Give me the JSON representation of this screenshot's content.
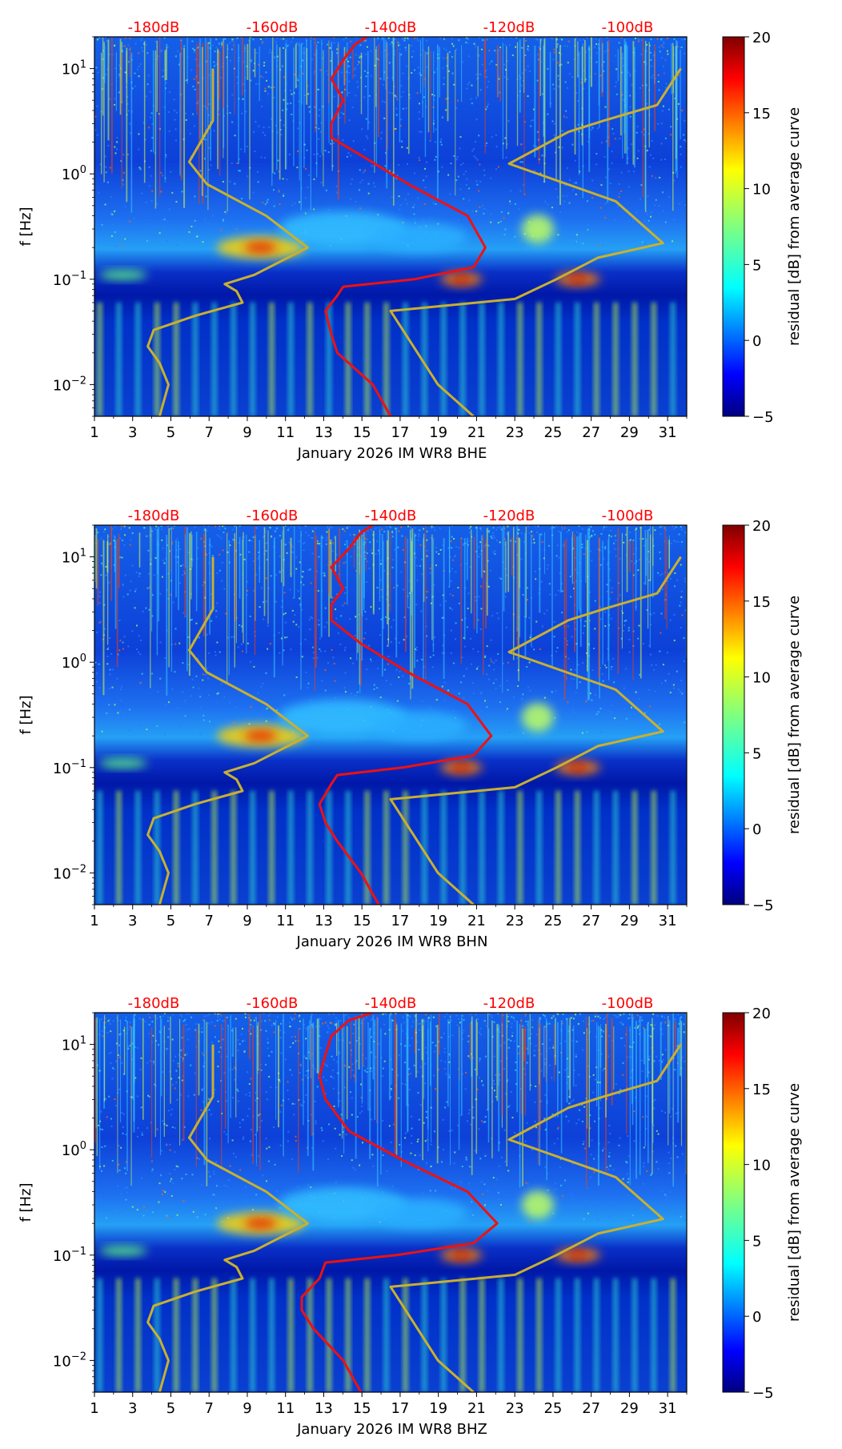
{
  "colors": {
    "db_axis": "#ff0000",
    "nlnm_nhnm": "#c8b030",
    "median": "#ee1111"
  },
  "colorbar": {
    "label": "residual [dB] from average curve",
    "ticks": [
      "20",
      "15",
      "10",
      "5",
      "0",
      "−5"
    ],
    "range": [
      -5,
      20
    ]
  },
  "chart_data": [
    {
      "type": "heatmap",
      "title": "",
      "xlabel": "January 2026 IM WR8  BHE",
      "ylabel": "f [Hz]",
      "x_ticks": [
        "1",
        "3",
        "5",
        "7",
        "9",
        "11",
        "13",
        "15",
        "17",
        "19",
        "21",
        "23",
        "25",
        "27",
        "29",
        "31"
      ],
      "xlim": [
        1,
        32
      ],
      "y_ticks": [
        {
          "base": "10",
          "exp": "1",
          "value": 10
        },
        {
          "base": "10",
          "exp": "0",
          "value": 1
        },
        {
          "base": "10",
          "exp": "−1",
          "value": 0.1
        },
        {
          "base": "10",
          "exp": "−2",
          "value": 0.01
        }
      ],
      "ylim": [
        0.005,
        20
      ],
      "top_axis_labels": [
        "-180dB",
        "-160dB",
        "-140dB",
        "-120dB",
        "-100dB"
      ],
      "top_axis_values": [
        -180,
        -160,
        -140,
        -120,
        -100
      ],
      "top_axis_range": [
        -190,
        -90
      ],
      "series": [
        {
          "name": "NLNM",
          "points": [
            [
              -179,
              0.005
            ],
            [
              -177.5,
              0.01
            ],
            [
              -179,
              0.016
            ],
            [
              -181,
              0.023
            ],
            [
              -180,
              0.033
            ],
            [
              -173,
              0.045
            ],
            [
              -165,
              0.06
            ],
            [
              -166,
              0.077
            ],
            [
              -168,
              0.09
            ],
            [
              -163,
              0.11
            ],
            [
              -154,
              0.2
            ],
            [
              -161,
              0.4
            ],
            [
              -171,
              0.8
            ],
            [
              -174,
              1.3
            ],
            [
              -170,
              3.2
            ],
            [
              -170,
              10
            ]
          ]
        },
        {
          "name": "NHNM",
          "points": [
            [
              -126,
              0.005
            ],
            [
              -132,
              0.01
            ],
            [
              -140,
              0.05
            ],
            [
              -119,
              0.065
            ],
            [
              -112,
              0.1
            ],
            [
              -105,
              0.16
            ],
            [
              -94,
              0.22
            ],
            [
              -102,
              0.55
            ],
            [
              -120,
              1.25
            ],
            [
              -110,
              2.5
            ],
            [
              -104,
              3.2
            ],
            [
              -95,
              4.5
            ],
            [
              -91,
              10
            ]
          ]
        },
        {
          "name": "median",
          "points": [
            [
              -140,
              0.005
            ],
            [
              -143,
              0.01
            ],
            [
              -149,
              0.02
            ],
            [
              -150,
              0.03
            ],
            [
              -151,
              0.05
            ],
            [
              -149,
              0.07
            ],
            [
              -148,
              0.085
            ],
            [
              -136,
              0.1
            ],
            [
              -126,
              0.13
            ],
            [
              -124,
              0.2
            ],
            [
              -127,
              0.4
            ],
            [
              -137,
              0.8
            ],
            [
              -145,
              1.5
            ],
            [
              -150,
              2.2
            ],
            [
              -150,
              3.0
            ],
            [
              -148,
              5
            ],
            [
              -150,
              8
            ],
            [
              -148,
              12
            ],
            [
              -146,
              17
            ],
            [
              -144,
              20
            ]
          ]
        }
      ]
    },
    {
      "type": "heatmap",
      "title": "",
      "xlabel": "January 2026 IM WR8  BHN",
      "ylabel": "f [Hz]",
      "x_ticks": [
        "1",
        "3",
        "5",
        "7",
        "9",
        "11",
        "13",
        "15",
        "17",
        "19",
        "21",
        "23",
        "25",
        "27",
        "29",
        "31"
      ],
      "xlim": [
        1,
        32
      ],
      "y_ticks": [
        {
          "base": "10",
          "exp": "1",
          "value": 10
        },
        {
          "base": "10",
          "exp": "0",
          "value": 1
        },
        {
          "base": "10",
          "exp": "−1",
          "value": 0.1
        },
        {
          "base": "10",
          "exp": "−2",
          "value": 0.01
        }
      ],
      "ylim": [
        0.005,
        20
      ],
      "top_axis_labels": [
        "-180dB",
        "-160dB",
        "-140dB",
        "-120dB",
        "-100dB"
      ],
      "top_axis_values": [
        -180,
        -160,
        -140,
        -120,
        -100
      ],
      "top_axis_range": [
        -190,
        -90
      ],
      "series": [
        {
          "name": "NLNM",
          "points": [
            [
              -179,
              0.005
            ],
            [
              -177.5,
              0.01
            ],
            [
              -179,
              0.016
            ],
            [
              -181,
              0.023
            ],
            [
              -180,
              0.033
            ],
            [
              -173,
              0.045
            ],
            [
              -165,
              0.06
            ],
            [
              -166,
              0.077
            ],
            [
              -168,
              0.09
            ],
            [
              -163,
              0.11
            ],
            [
              -154,
              0.2
            ],
            [
              -161,
              0.4
            ],
            [
              -171,
              0.8
            ],
            [
              -174,
              1.3
            ],
            [
              -170,
              3.2
            ],
            [
              -170,
              10
            ]
          ]
        },
        {
          "name": "NHNM",
          "points": [
            [
              -126,
              0.005
            ],
            [
              -132,
              0.01
            ],
            [
              -140,
              0.05
            ],
            [
              -119,
              0.065
            ],
            [
              -112,
              0.1
            ],
            [
              -105,
              0.16
            ],
            [
              -94,
              0.22
            ],
            [
              -102,
              0.55
            ],
            [
              -120,
              1.25
            ],
            [
              -110,
              2.5
            ],
            [
              -104,
              3.2
            ],
            [
              -95,
              4.5
            ],
            [
              -91,
              10
            ]
          ]
        },
        {
          "name": "median",
          "points": [
            [
              -142,
              0.005
            ],
            [
              -145,
              0.01
            ],
            [
              -149,
              0.02
            ],
            [
              -151,
              0.03
            ],
            [
              -152,
              0.045
            ],
            [
              -150,
              0.07
            ],
            [
              -149,
              0.085
            ],
            [
              -138,
              0.1
            ],
            [
              -126,
              0.13
            ],
            [
              -123,
              0.2
            ],
            [
              -127,
              0.4
            ],
            [
              -137,
              0.8
            ],
            [
              -145,
              1.5
            ],
            [
              -150,
              2.5
            ],
            [
              -150,
              3.5
            ],
            [
              -148,
              5
            ],
            [
              -150,
              8
            ],
            [
              -147,
              12
            ],
            [
              -145,
              17
            ],
            [
              -143,
              20
            ]
          ]
        }
      ]
    },
    {
      "type": "heatmap",
      "title": "",
      "xlabel": "January 2026 IM WR8  BHZ",
      "ylabel": "f [Hz]",
      "x_ticks": [
        "1",
        "3",
        "5",
        "7",
        "9",
        "11",
        "13",
        "15",
        "17",
        "19",
        "21",
        "23",
        "25",
        "27",
        "29",
        "31"
      ],
      "xlim": [
        1,
        32
      ],
      "y_ticks": [
        {
          "base": "10",
          "exp": "1",
          "value": 10
        },
        {
          "base": "10",
          "exp": "0",
          "value": 1
        },
        {
          "base": "10",
          "exp": "−1",
          "value": 0.1
        },
        {
          "base": "10",
          "exp": "−2",
          "value": 0.01
        }
      ],
      "ylim": [
        0.005,
        20
      ],
      "top_axis_labels": [
        "-180dB",
        "-160dB",
        "-140dB",
        "-120dB",
        "-100dB"
      ],
      "top_axis_values": [
        -180,
        -160,
        -140,
        -120,
        -100
      ],
      "top_axis_range": [
        -190,
        -90
      ],
      "series": [
        {
          "name": "NLNM",
          "points": [
            [
              -179,
              0.005
            ],
            [
              -177.5,
              0.01
            ],
            [
              -179,
              0.016
            ],
            [
              -181,
              0.023
            ],
            [
              -180,
              0.033
            ],
            [
              -173,
              0.045
            ],
            [
              -165,
              0.06
            ],
            [
              -166,
              0.077
            ],
            [
              -168,
              0.09
            ],
            [
              -163,
              0.11
            ],
            [
              -154,
              0.2
            ],
            [
              -161,
              0.4
            ],
            [
              -171,
              0.8
            ],
            [
              -174,
              1.3
            ],
            [
              -170,
              3.2
            ],
            [
              -170,
              10
            ]
          ]
        },
        {
          "name": "NHNM",
          "points": [
            [
              -126,
              0.005
            ],
            [
              -132,
              0.01
            ],
            [
              -140,
              0.05
            ],
            [
              -119,
              0.065
            ],
            [
              -112,
              0.1
            ],
            [
              -105,
              0.16
            ],
            [
              -94,
              0.22
            ],
            [
              -102,
              0.55
            ],
            [
              -120,
              1.25
            ],
            [
              -110,
              2.5
            ],
            [
              -104,
              3.2
            ],
            [
              -95,
              4.5
            ],
            [
              -91,
              10
            ]
          ]
        },
        {
          "name": "median",
          "points": [
            [
              -145,
              0.005
            ],
            [
              -148,
              0.01
            ],
            [
              -153,
              0.02
            ],
            [
              -155,
              0.03
            ],
            [
              -155,
              0.04
            ],
            [
              -152,
              0.06
            ],
            [
              -151,
              0.085
            ],
            [
              -139,
              0.1
            ],
            [
              -126,
              0.13
            ],
            [
              -122,
              0.2
            ],
            [
              -127,
              0.4
            ],
            [
              -138,
              0.8
            ],
            [
              -147,
              1.5
            ],
            [
              -151,
              3
            ],
            [
              -152,
              5
            ],
            [
              -151,
              8
            ],
            [
              -150,
              12
            ],
            [
              -147,
              17
            ],
            [
              -143,
              20
            ]
          ]
        }
      ]
    }
  ]
}
